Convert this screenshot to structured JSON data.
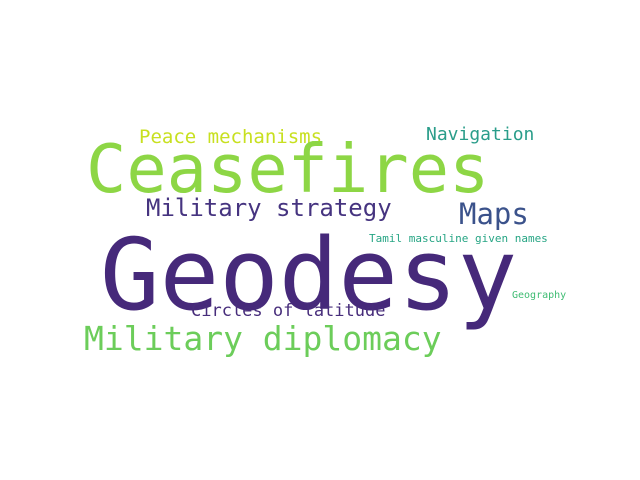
{
  "words": {
    "ceasefires": {
      "text": "Ceasefires",
      "color": "#8dd645"
    },
    "geodesy": {
      "text": "Geodesy",
      "color": "#46297a"
    },
    "military_diplomacy": {
      "text": "Military diplomacy",
      "color": "#6ccd5a"
    },
    "military_strategy": {
      "text": "Military strategy",
      "color": "#463480"
    },
    "maps": {
      "text": "Maps",
      "color": "#3b528b"
    },
    "peace_mechanisms": {
      "text": "Peace mechanisms",
      "color": "#c8e020"
    },
    "navigation": {
      "text": "Navigation",
      "color": "#2a9d8a"
    },
    "circles_of_latitude": {
      "text": "Circles of latitude",
      "color": "#472d7b"
    },
    "tamil_masculine_given_names": {
      "text": "Tamil masculine given names",
      "color": "#26a584"
    },
    "geography": {
      "text": "Geography",
      "color": "#3fbc73"
    }
  }
}
